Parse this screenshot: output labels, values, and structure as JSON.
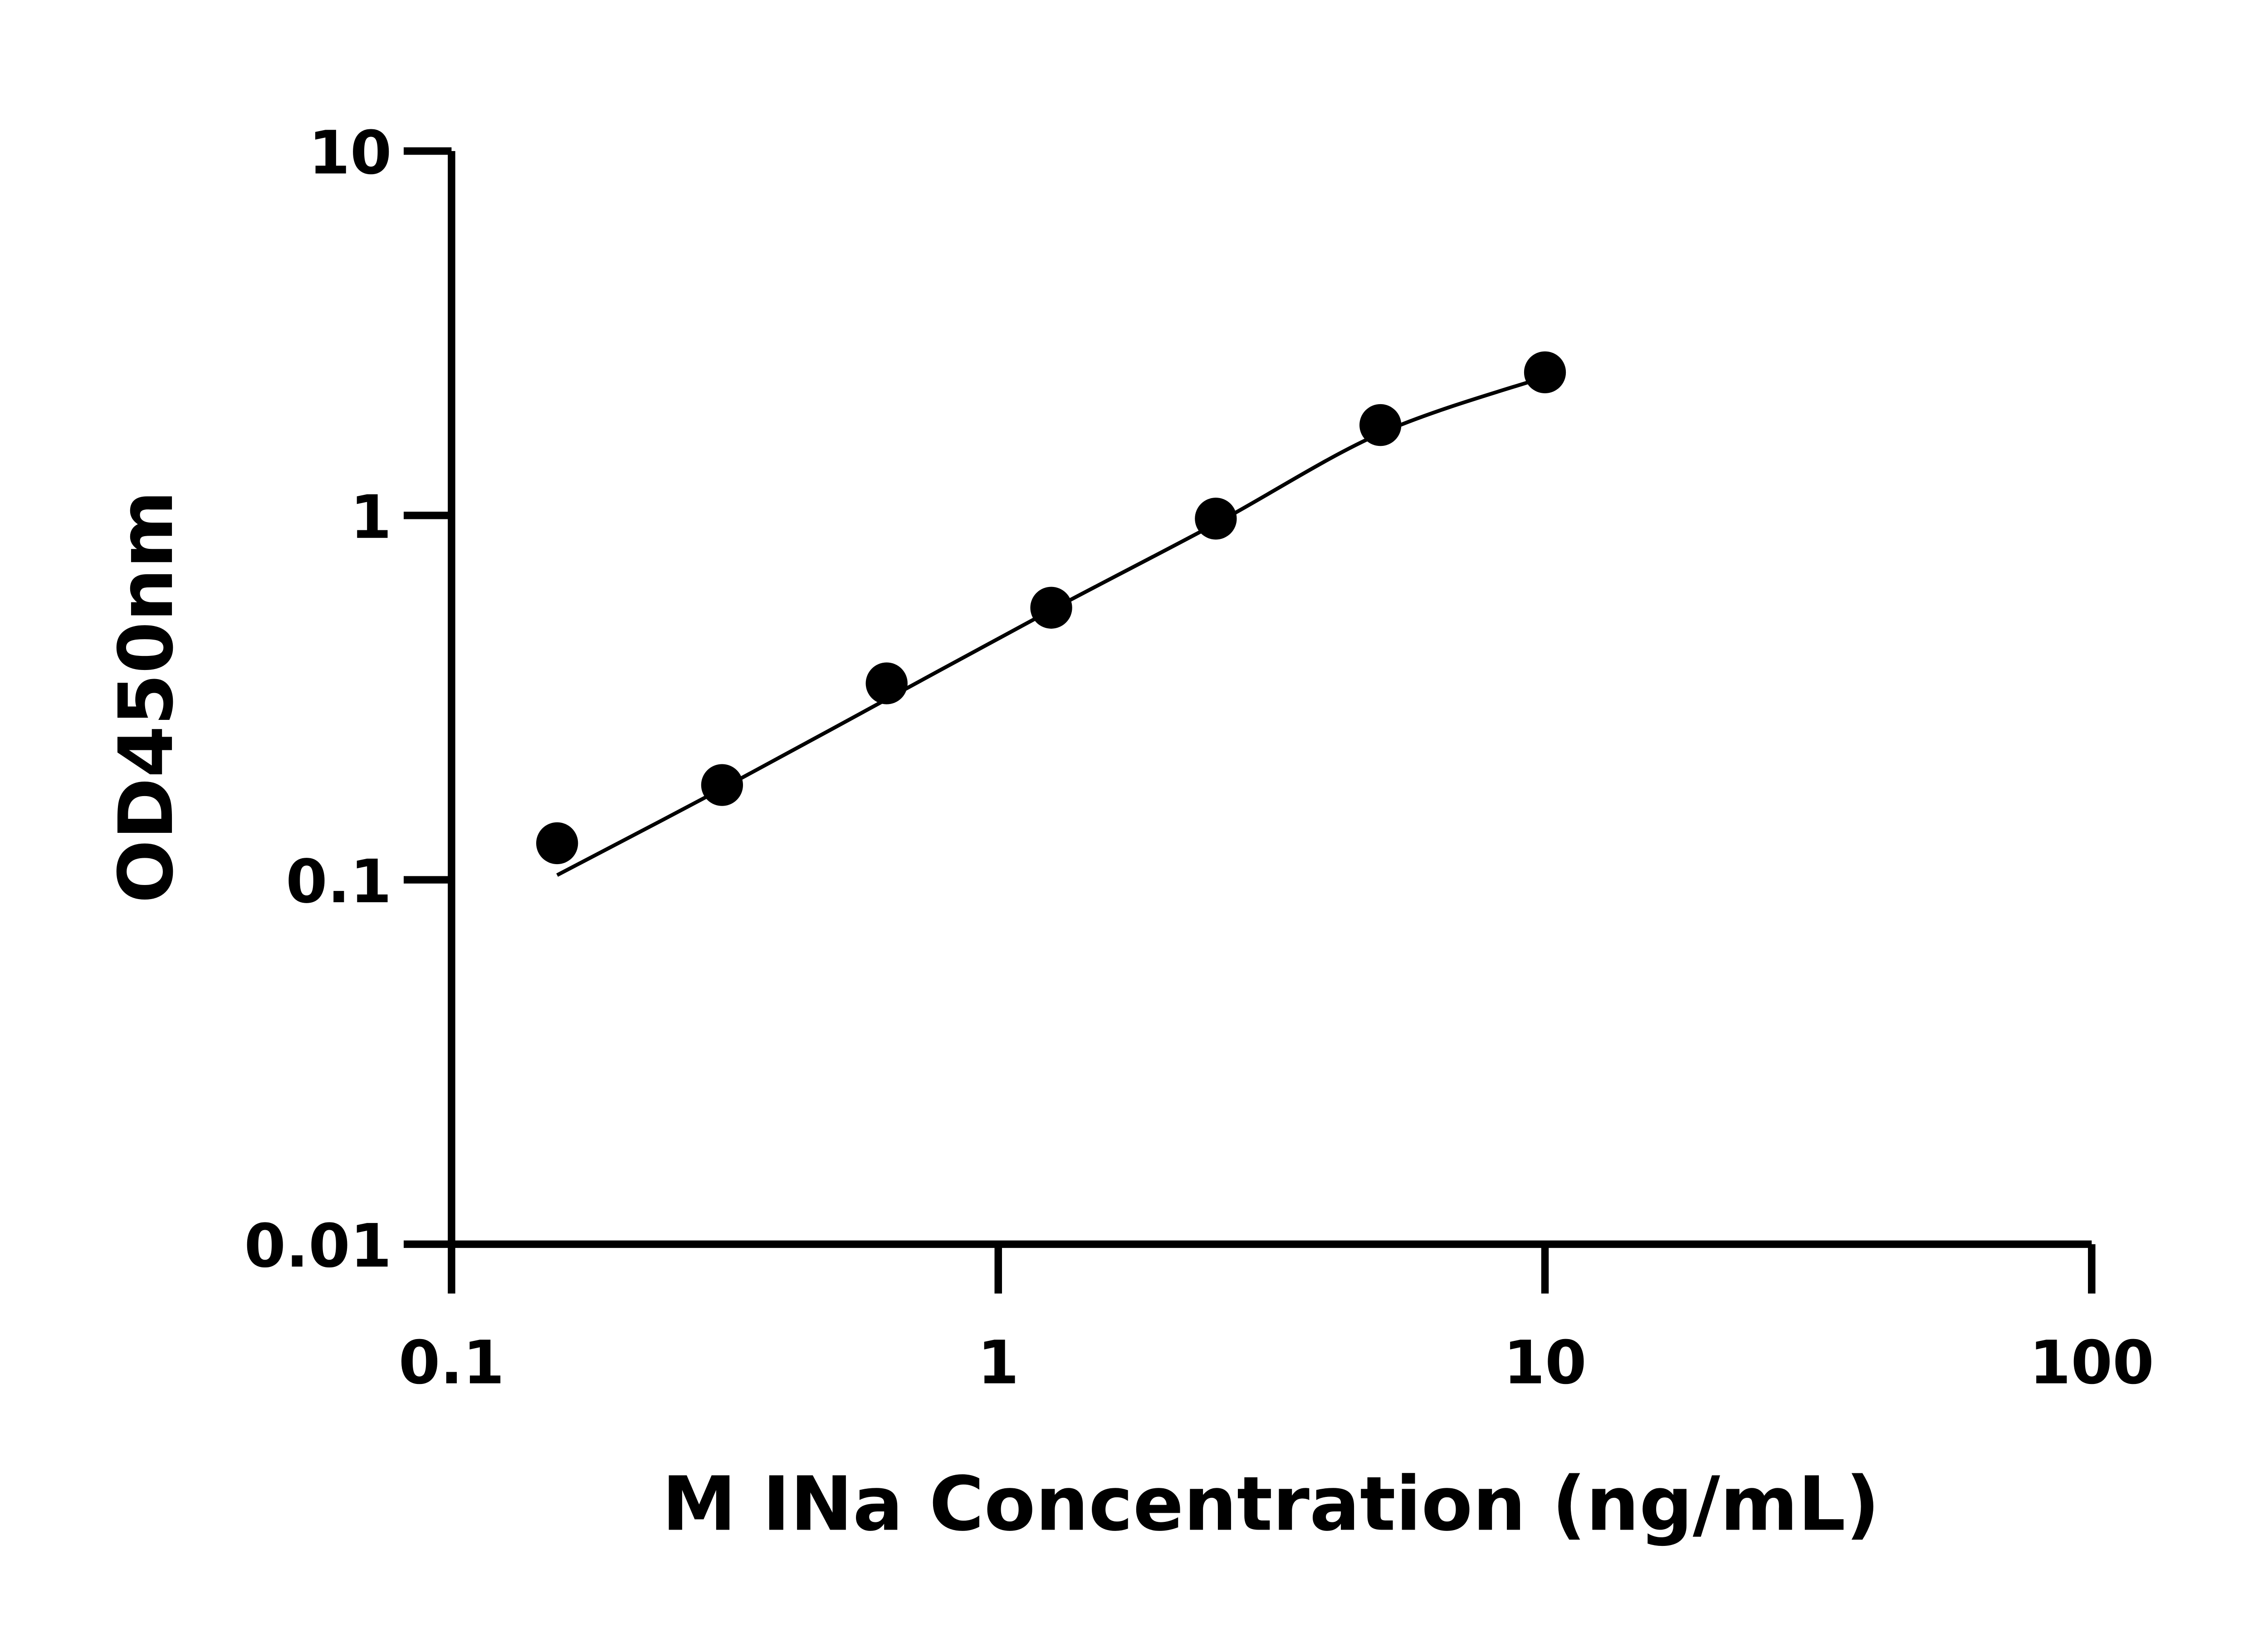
{
  "chart_data": {
    "type": "scatter",
    "title": "",
    "xlabel": "M INa Concentration (ng/mL)",
    "ylabel": "OD450nm",
    "x_scale": "log",
    "y_scale": "log",
    "xlim": [
      0.1,
      100
    ],
    "ylim": [
      0.01,
      10
    ],
    "x_ticks": [
      "0.1",
      "1",
      "10",
      "100"
    ],
    "y_ticks": [
      "0.01",
      "0.1",
      "1",
      "10"
    ],
    "grid": false,
    "legend": "none",
    "point_color": "#000000",
    "points": [
      {
        "x": 0.156,
        "y": 0.126
      },
      {
        "x": 0.3125,
        "y": 0.182
      },
      {
        "x": 0.625,
        "y": 0.346
      },
      {
        "x": 1.25,
        "y": 0.558
      },
      {
        "x": 2.5,
        "y": 0.98
      },
      {
        "x": 5,
        "y": 1.77
      },
      {
        "x": 10,
        "y": 2.47
      }
    ],
    "fit_curve": [
      {
        "x": 0.156,
        "y": 0.103
      },
      {
        "x": 0.3125,
        "y": 0.178
      },
      {
        "x": 0.625,
        "y": 0.313
      },
      {
        "x": 1.25,
        "y": 0.55
      },
      {
        "x": 2.5,
        "y": 0.95
      },
      {
        "x": 5,
        "y": 1.68
      },
      {
        "x": 10,
        "y": 2.4
      }
    ]
  }
}
